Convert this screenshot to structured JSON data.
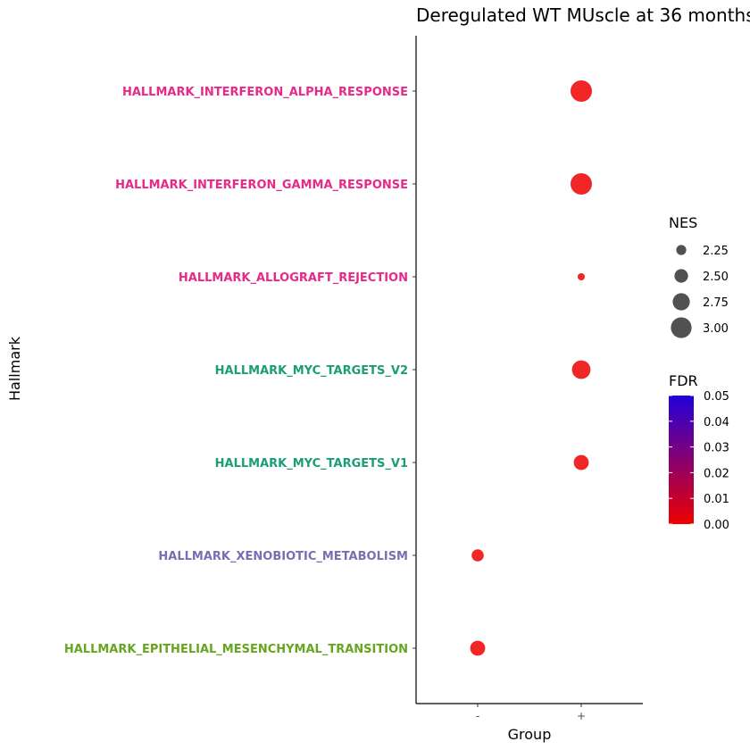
{
  "chart_data": {
    "type": "scatter",
    "title": "Deregulated WT MUscle at 36 months",
    "xlabel": "Group",
    "ylabel": "Hallmark",
    "x_categories": [
      "-",
      "+"
    ],
    "y_categories": [
      "HALLMARK_INTERFERON_ALPHA_RESPONSE",
      "HALLMARK_INTERFERON_GAMMA_RESPONSE",
      "HALLMARK_ALLOGRAFT_REJECTION",
      "HALLMARK_MYC_TARGETS_V2",
      "HALLMARK_MYC_TARGETS_V1",
      "HALLMARK_XENOBIOTIC_METABOLISM",
      "HALLMARK_EPITHELIAL_MESENCHYMAL_TRANSITION"
    ],
    "y_label_colors": [
      "#e7298a",
      "#e7298a",
      "#e7298a",
      "#1b9e77",
      "#1b9e77",
      "#7570b3",
      "#66a61e"
    ],
    "points": [
      {
        "hallmark": "HALLMARK_INTERFERON_ALPHA_RESPONSE",
        "group": "+",
        "nes": 3.05,
        "fdr": 0.0
      },
      {
        "hallmark": "HALLMARK_INTERFERON_GAMMA_RESPONSE",
        "group": "+",
        "nes": 3.05,
        "fdr": 0.0
      },
      {
        "hallmark": "HALLMARK_ALLOGRAFT_REJECTION",
        "group": "+",
        "nes": 2.05,
        "fdr": 0.0
      },
      {
        "hallmark": "HALLMARK_MYC_TARGETS_V2",
        "group": "+",
        "nes": 2.85,
        "fdr": 0.0
      },
      {
        "hallmark": "HALLMARK_MYC_TARGETS_V1",
        "group": "+",
        "nes": 2.6,
        "fdr": 0.0
      },
      {
        "hallmark": "HALLMARK_XENOBIOTIC_METABOLISM",
        "group": "-",
        "nes": 2.4,
        "fdr": 0.0
      },
      {
        "hallmark": "HALLMARK_EPITHELIAL_MESENCHYMAL_TRANSITION",
        "group": "-",
        "nes": 2.6,
        "fdr": 0.0
      }
    ],
    "legend_size": {
      "title": "NES",
      "labels": [
        "2.25",
        "2.50",
        "2.75",
        "3.00"
      ],
      "values": [
        2.25,
        2.5,
        2.75,
        3.0
      ]
    },
    "legend_color": {
      "title": "FDR",
      "labels": [
        "0.05",
        "0.04",
        "0.03",
        "0.02",
        "0.01",
        "0.00"
      ],
      "values": [
        0.05,
        0.04,
        0.03,
        0.02,
        0.01,
        0.0
      ],
      "low_color": "#ee0000",
      "high_color": "#2200dd"
    },
    "point_color": "#ee1c25",
    "legend_point_color": "#333333",
    "legend_placement": "right",
    "grid": false
  }
}
